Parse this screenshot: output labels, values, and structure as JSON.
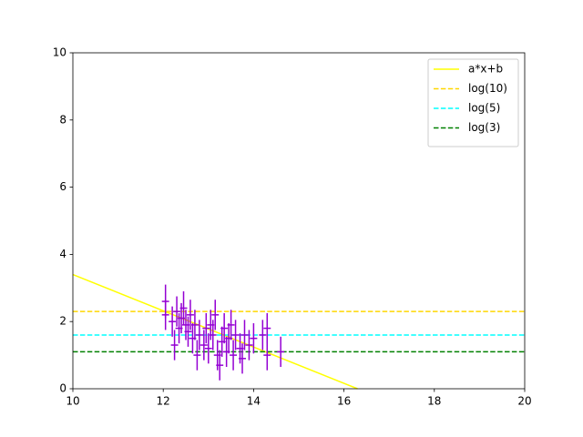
{
  "chart_data": {
    "type": "line",
    "xlim": [
      10,
      20
    ],
    "xticks": [
      10,
      12,
      14,
      16,
      18,
      20
    ],
    "ylim": [
      0,
      10
    ],
    "yticks": [
      0,
      2,
      4,
      6,
      8,
      10
    ],
    "legend": "upper right",
    "series": [
      {
        "name": "a*x+b",
        "color": "#ffff00",
        "dash": false,
        "x": [
          10,
          16.3
        ],
        "values": [
          3.4,
          0
        ]
      },
      {
        "name": "log(10)",
        "color": "#ffd700",
        "dash": true,
        "x": [
          10,
          20
        ],
        "values": [
          2.3,
          2.3
        ]
      },
      {
        "name": "log(5)",
        "color": "#00ffff",
        "dash": true,
        "x": [
          10,
          20
        ],
        "values": [
          1.6,
          1.6
        ]
      },
      {
        "name": "log(3)",
        "color": "#008000",
        "dash": true,
        "x": [
          10,
          20
        ],
        "values": [
          1.1,
          1.1
        ]
      },
      {
        "color": "#9400d3",
        "errorbar": true,
        "x": [
          12.05,
          12.05,
          12.2,
          12.25,
          12.3,
          12.35,
          12.4,
          12.45,
          12.5,
          12.55,
          12.6,
          12.65,
          12.7,
          12.75,
          12.8,
          12.9,
          12.95,
          13.0,
          13.05,
          13.1,
          13.15,
          13.2,
          13.25,
          13.3,
          13.35,
          13.4,
          13.45,
          13.5,
          13.55,
          13.6,
          13.7,
          13.75,
          13.8,
          13.9,
          14.0,
          14.2,
          14.3,
          14.3,
          14.6
        ],
        "values": [
          2.6,
          2.2,
          2.0,
          1.3,
          2.3,
          1.8,
          2.1,
          2.4,
          1.9,
          1.7,
          2.2,
          1.5,
          1.9,
          1.0,
          1.6,
          1.3,
          1.8,
          1.2,
          1.9,
          1.6,
          2.2,
          1.0,
          0.7,
          1.4,
          1.8,
          1.1,
          1.5,
          1.9,
          1.0,
          1.6,
          1.2,
          0.9,
          1.6,
          1.3,
          1.5,
          1.6,
          1.0,
          1.8,
          1.1
        ],
        "yerr": [
          0.5,
          0.45,
          0.45,
          0.45,
          0.45,
          0.45,
          0.45,
          0.5,
          0.45,
          0.45,
          0.45,
          0.45,
          0.45,
          0.45,
          0.45,
          0.45,
          0.45,
          0.45,
          0.45,
          0.45,
          0.45,
          0.45,
          0.45,
          0.45,
          0.45,
          0.45,
          0.45,
          0.45,
          0.45,
          0.45,
          0.45,
          0.45,
          0.45,
          0.45,
          0.45,
          0.45,
          0.45,
          0.45,
          0.45
        ],
        "xerr": [
          0.08,
          0.08,
          0.08,
          0.08,
          0.08,
          0.08,
          0.08,
          0.08,
          0.08,
          0.08,
          0.08,
          0.08,
          0.08,
          0.08,
          0.08,
          0.08,
          0.08,
          0.08,
          0.08,
          0.08,
          0.08,
          0.08,
          0.08,
          0.08,
          0.08,
          0.08,
          0.08,
          0.08,
          0.08,
          0.08,
          0.08,
          0.08,
          0.08,
          0.08,
          0.08,
          0.08,
          0.08,
          0.08,
          0.08
        ]
      }
    ]
  }
}
